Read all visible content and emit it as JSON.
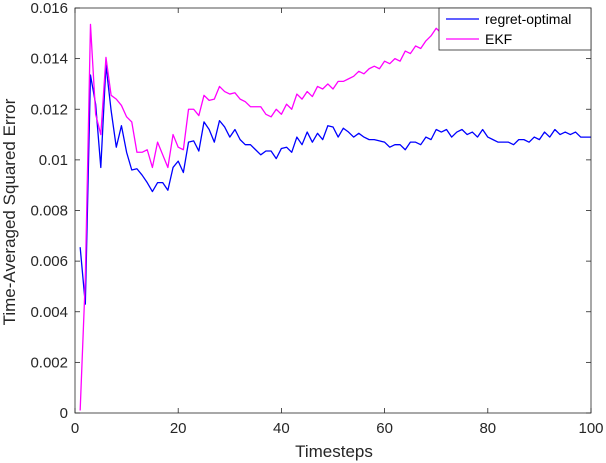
{
  "chart_data": {
    "type": "line",
    "title": "",
    "xlabel": "Timesteps",
    "ylabel": "Time-Averaged Squared Error",
    "xlim": [
      0,
      100
    ],
    "ylim": [
      0,
      0.016
    ],
    "xticks": [
      0,
      20,
      40,
      60,
      80,
      100
    ],
    "yticks": [
      0,
      0.002,
      0.004,
      0.006,
      0.008,
      0.01,
      0.012,
      0.014,
      0.016
    ],
    "xtick_labels": [
      "0",
      "20",
      "40",
      "60",
      "80",
      "100"
    ],
    "ytick_labels": [
      "0",
      "0.002",
      "0.004",
      "0.006",
      "0.008",
      "0.01",
      "0.012",
      "0.014",
      "0.016"
    ],
    "grid": false,
    "legend_position": "top-right",
    "x": [
      1,
      2,
      3,
      4,
      5,
      6,
      7,
      8,
      9,
      10,
      11,
      12,
      13,
      14,
      15,
      16,
      17,
      18,
      19,
      20,
      21,
      22,
      23,
      24,
      25,
      26,
      27,
      28,
      29,
      30,
      31,
      32,
      33,
      34,
      35,
      36,
      37,
      38,
      39,
      40,
      41,
      42,
      43,
      44,
      45,
      46,
      47,
      48,
      49,
      50,
      51,
      52,
      53,
      54,
      55,
      56,
      57,
      58,
      59,
      60,
      61,
      62,
      63,
      64,
      65,
      66,
      67,
      68,
      69,
      70,
      71,
      72,
      73,
      74,
      75,
      76,
      77,
      78,
      79,
      80,
      81,
      82,
      83,
      84,
      85,
      86,
      87,
      88,
      89,
      90,
      91,
      92,
      93,
      94,
      95,
      96,
      97,
      98,
      99,
      100
    ],
    "series": [
      {
        "name": "regret-optimal",
        "color": "#0000ff",
        "values": [
          0.00655,
          0.0043,
          0.01335,
          0.0122,
          0.0097,
          0.01375,
          0.01195,
          0.0105,
          0.01135,
          0.0103,
          0.0096,
          0.00965,
          0.0094,
          0.0091,
          0.00875,
          0.0091,
          0.0091,
          0.0088,
          0.0097,
          0.00995,
          0.0095,
          0.0107,
          0.01075,
          0.01035,
          0.0115,
          0.0112,
          0.0107,
          0.01155,
          0.0113,
          0.0109,
          0.0112,
          0.0108,
          0.0106,
          0.0106,
          0.0104,
          0.0102,
          0.01035,
          0.01035,
          0.01005,
          0.01045,
          0.0105,
          0.0103,
          0.0109,
          0.0106,
          0.0111,
          0.0107,
          0.01105,
          0.0108,
          0.01135,
          0.0113,
          0.0109,
          0.01125,
          0.0111,
          0.0109,
          0.01105,
          0.0109,
          0.0108,
          0.0108,
          0.01075,
          0.0107,
          0.0105,
          0.0106,
          0.0106,
          0.0104,
          0.0107,
          0.0107,
          0.0106,
          0.0109,
          0.0108,
          0.0112,
          0.0111,
          0.0112,
          0.0109,
          0.0111,
          0.0112,
          0.011,
          0.0111,
          0.0109,
          0.0112,
          0.0109,
          0.0108,
          0.0107,
          0.0107,
          0.0107,
          0.0106,
          0.0108,
          0.0108,
          0.0107,
          0.0109,
          0.0108,
          0.0111,
          0.0109,
          0.0112,
          0.011,
          0.0111,
          0.011,
          0.0111,
          0.0109,
          0.0109,
          0.0109
        ]
      },
      {
        "name": "EKF",
        "color": "#ff00ff",
        "values": [
          0.0001,
          0.0053,
          0.01535,
          0.0118,
          0.011,
          0.01405,
          0.01255,
          0.0124,
          0.01215,
          0.0117,
          0.0115,
          0.0103,
          0.0103,
          0.0104,
          0.0097,
          0.0107,
          0.0102,
          0.0097,
          0.011,
          0.0105,
          0.0104,
          0.012,
          0.012,
          0.01175,
          0.01255,
          0.01235,
          0.0124,
          0.0129,
          0.0127,
          0.0126,
          0.01265,
          0.0124,
          0.0123,
          0.0121,
          0.0121,
          0.0121,
          0.0118,
          0.0117,
          0.012,
          0.0118,
          0.0122,
          0.012,
          0.0126,
          0.0124,
          0.0127,
          0.0125,
          0.0129,
          0.0128,
          0.013,
          0.0128,
          0.0131,
          0.0131,
          0.0132,
          0.0133,
          0.0135,
          0.0134,
          0.0136,
          0.0137,
          0.0136,
          0.0139,
          0.0138,
          0.014,
          0.0139,
          0.0143,
          0.0142,
          0.0145,
          0.0144,
          0.0147,
          0.0149,
          0.0152,
          0.015,
          0.015,
          0.0151,
          0.015,
          0.015,
          0.015,
          0.0149,
          0.015,
          0.0148,
          0.0148,
          0.0146,
          0.0145,
          0.0145,
          0.0144,
          0.0145,
          0.0147,
          0.0149,
          0.0147,
          0.0148,
          0.0147,
          0.0146,
          0.0148,
          0.0148,
          0.0147,
          0.0148,
          0.0146,
          0.0148,
          0.0147,
          0.0148,
          0.0147
        ]
      }
    ]
  }
}
